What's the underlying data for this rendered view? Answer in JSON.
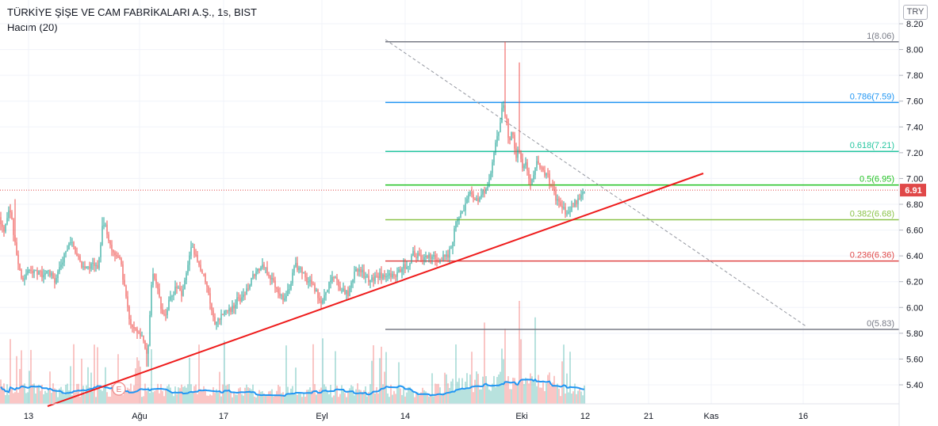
{
  "header": {
    "title": "TÜRKİYE ŞİŞE VE CAM FABRİKALARI A.Ş., 1s, BIST",
    "volume_label": "Hacim (20)",
    "currency": "TRY"
  },
  "chart_data": {
    "type": "candlestick",
    "y_ticks": [
      "8.20",
      "8.00",
      "7.80",
      "7.60",
      "7.40",
      "7.20",
      "7.00",
      "6.80",
      "6.60",
      "6.40",
      "6.20",
      "6.00",
      "5.80",
      "5.60",
      "5.40"
    ],
    "ylim": [
      5.26,
      8.22
    ],
    "x_tick_labels": [
      "13",
      "Ağu",
      "17",
      "Eyl",
      "14",
      "Eki",
      "12",
      "21",
      "Kas",
      "16"
    ],
    "last_price": "6.91",
    "last_price_value": 6.91,
    "fibonacci": [
      {
        "label": "1(8.06)",
        "value": 8.06,
        "color": "#787b86"
      },
      {
        "label": "0.786(7.59)",
        "value": 7.59,
        "color": "#2196f3"
      },
      {
        "label": "0.618(7.21)",
        "value": 7.21,
        "color": "#26c6a0"
      },
      {
        "label": "0.5(6.95)",
        "value": 6.95,
        "color": "#22c222"
      },
      {
        "label": "0.382(6.68)",
        "value": 6.68,
        "color": "#8bc34a"
      },
      {
        "label": "0.236(6.36)",
        "value": 6.36,
        "color": "#e04848"
      },
      {
        "label": "0(5.83)",
        "value": 5.83,
        "color": "#787b86"
      }
    ],
    "price_path": [
      [
        0,
        6.7
      ],
      [
        4,
        6.58
      ],
      [
        12,
        6.79
      ],
      [
        20,
        6.45
      ],
      [
        28,
        6.2
      ],
      [
        36,
        6.28
      ],
      [
        44,
        6.3
      ],
      [
        54,
        6.24
      ],
      [
        62,
        6.28
      ],
      [
        70,
        6.21
      ],
      [
        80,
        6.38
      ],
      [
        90,
        6.52
      ],
      [
        100,
        6.36
      ],
      [
        108,
        6.3
      ],
      [
        116,
        6.34
      ],
      [
        124,
        6.3
      ],
      [
        130,
        6.68
      ],
      [
        140,
        6.46
      ],
      [
        150,
        6.4
      ],
      [
        158,
        6.15
      ],
      [
        164,
        5.85
      ],
      [
        172,
        5.84
      ],
      [
        180,
        5.78
      ],
      [
        186,
        5.58
      ],
      [
        192,
        6.3
      ],
      [
        198,
        6.18
      ],
      [
        206,
        5.9
      ],
      [
        214,
        6.05
      ],
      [
        222,
        6.15
      ],
      [
        230,
        6.08
      ],
      [
        236,
        6.32
      ],
      [
        242,
        6.48
      ],
      [
        250,
        6.34
      ],
      [
        258,
        6.25
      ],
      [
        266,
        6.02
      ],
      [
        272,
        5.86
      ],
      [
        280,
        5.95
      ],
      [
        290,
        5.98
      ],
      [
        300,
        6.06
      ],
      [
        310,
        6.12
      ],
      [
        320,
        6.24
      ],
      [
        330,
        6.32
      ],
      [
        340,
        6.25
      ],
      [
        350,
        6.15
      ],
      [
        358,
        6.05
      ],
      [
        366,
        6.18
      ],
      [
        372,
        6.34
      ],
      [
        380,
        6.28
      ],
      [
        390,
        6.2
      ],
      [
        398,
        6.12
      ],
      [
        406,
        6.02
      ],
      [
        414,
        6.16
      ],
      [
        422,
        6.24
      ],
      [
        432,
        6.12
      ],
      [
        440,
        6.1
      ],
      [
        448,
        6.3
      ],
      [
        456,
        6.28
      ],
      [
        466,
        6.2
      ],
      [
        476,
        6.24
      ],
      [
        486,
        6.26
      ],
      [
        496,
        6.25
      ],
      [
        506,
        6.3
      ],
      [
        514,
        6.34
      ],
      [
        522,
        6.42
      ],
      [
        532,
        6.38
      ],
      [
        542,
        6.4
      ],
      [
        552,
        6.38
      ],
      [
        562,
        6.4
      ],
      [
        570,
        6.44
      ],
      [
        574,
        6.66
      ],
      [
        580,
        6.7
      ],
      [
        586,
        6.76
      ],
      [
        592,
        6.88
      ],
      [
        598,
        6.82
      ],
      [
        606,
        6.86
      ],
      [
        614,
        6.92
      ],
      [
        620,
        7.06
      ],
      [
        626,
        7.3
      ],
      [
        630,
        7.4
      ],
      [
        634,
        7.56
      ],
      [
        638,
        7.48
      ],
      [
        642,
        7.3
      ],
      [
        646,
        7.4
      ],
      [
        650,
        7.15
      ],
      [
        654,
        7.26
      ],
      [
        658,
        7.1
      ],
      [
        664,
        7.12
      ],
      [
        670,
        6.94
      ],
      [
        676,
        7.12
      ],
      [
        684,
        7.06
      ],
      [
        690,
        7.02
      ],
      [
        696,
        6.95
      ],
      [
        702,
        6.82
      ],
      [
        708,
        6.78
      ],
      [
        714,
        6.72
      ],
      [
        720,
        6.76
      ],
      [
        726,
        6.82
      ],
      [
        732,
        6.88
      ],
      [
        737,
        6.91
      ]
    ]
  }
}
